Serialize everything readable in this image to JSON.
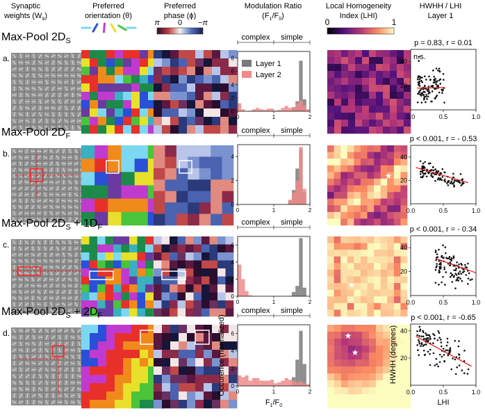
{
  "headers": {
    "weights": [
      "Synaptic",
      "weights (W",
      "s",
      ")"
    ],
    "orientation": [
      "Preferred",
      "orientation (θ)"
    ],
    "phase": [
      "Preferred",
      "phase (ϕ)"
    ],
    "modulation": [
      "Modulation Ratio",
      "(F",
      "1",
      "/F",
      "0",
      ")"
    ],
    "lhi": [
      "Local Homogeneity",
      "Index (LHI)"
    ],
    "hwhh": [
      "HWHH / LHI",
      "Layer 1"
    ]
  },
  "phase_colorbar": {
    "left": "π",
    "mid": "0",
    "right": "−π"
  },
  "lhi_colorbar": {
    "min": "0",
    "max": "1"
  },
  "rows": [
    {
      "letter": "a.",
      "title_main": "Max-Pool 2D",
      "title_sub": "S",
      "title_extra": "",
      "title_extra_sub": "",
      "stats": "p = 0.83, r = 0.01",
      "ns": "n.s."
    },
    {
      "letter": "b.",
      "title_main": "Max-Pool 2D",
      "title_sub": "F",
      "title_extra": "",
      "title_extra_sub": "",
      "stats": "p < 0.001, r = - 0.53",
      "ns": ""
    },
    {
      "letter": "c.",
      "title_main": "Max-Pool 2D",
      "title_sub": "S",
      "title_extra": " + 1D",
      "title_extra_sub": "F",
      "stats": "p < 0.001, r = - 0.34",
      "ns": ""
    },
    {
      "letter": "d.",
      "title_main": "Max-Pool 2D",
      "title_sub": "S",
      "title_extra": " + 2D",
      "title_extra_sub": "F",
      "stats": "p < 0.001, r = -0.65",
      "ns": ""
    }
  ],
  "hist_labels": {
    "complex": "complex",
    "simple": "simple",
    "legend_l1": "Layer 1",
    "legend_l2": "Layer 2",
    "xlabel_main": "F",
    "xlabel_sub1": "1",
    "xlabel_slash": "/F",
    "xlabel_sub0": "0",
    "ylabel": "Occurence (normalized)"
  },
  "scatter_labels": {
    "xlabel": "LHI",
    "ylabel": "HWHH (degrees)"
  },
  "colors": {
    "layer1": "#7a7a7a",
    "layer2": "#f08a8a",
    "fit": "#e02020",
    "highlight": "#ff2020"
  },
  "chart_data": [
    {
      "panel": "a",
      "type": "bar",
      "title": "Modulation Ratio histogram",
      "xlim": [
        0,
        2
      ],
      "ylim": [
        0,
        9
      ],
      "yticks": [
        0,
        2,
        4,
        6,
        8
      ],
      "xticks": [
        0,
        1,
        2
      ],
      "bins": 20,
      "series": [
        {
          "name": "Layer 1",
          "values": [
            0,
            0,
            0,
            0,
            0,
            0,
            0,
            0,
            0,
            0,
            0,
            0,
            0,
            0,
            0,
            0.6,
            1.5,
            7.6,
            1.8,
            0
          ]
        },
        {
          "name": "Layer 2",
          "values": [
            1.2,
            0.3,
            0,
            0.1,
            0.3,
            0.5,
            0.3,
            0.2,
            0.4,
            0.4,
            0.1,
            0.2,
            0.5,
            0.8,
            0.5,
            0.5,
            1.2,
            1.6,
            0.9,
            0.3
          ]
        }
      ]
    },
    {
      "panel": "b",
      "type": "bar",
      "title": "Modulation Ratio histogram",
      "xlim": [
        0,
        2
      ],
      "ylim": [
        0,
        5
      ],
      "yticks": [
        0,
        2,
        4
      ],
      "xticks": [
        0,
        1,
        2
      ],
      "bins": 20,
      "series": [
        {
          "name": "Layer 1",
          "values": [
            0,
            0,
            0,
            0,
            0,
            0,
            0,
            0,
            0,
            0,
            0,
            0,
            0,
            0,
            0.3,
            1.2,
            3.0,
            4.6,
            1.0,
            0
          ]
        },
        {
          "name": "Layer 2",
          "values": [
            0,
            0,
            0,
            0,
            0,
            0,
            0,
            0,
            0,
            0,
            0,
            0,
            0,
            0,
            0.4,
            1.0,
            2.0,
            4.8,
            1.3,
            0
          ]
        }
      ]
    },
    {
      "panel": "c",
      "type": "bar",
      "title": "Modulation Ratio histogram",
      "xlim": [
        0,
        2
      ],
      "ylim": [
        0,
        7
      ],
      "yticks": [
        0,
        2,
        4,
        6
      ],
      "xticks": [
        0,
        1,
        2
      ],
      "bins": 20,
      "series": [
        {
          "name": "Layer 1",
          "values": [
            0,
            0,
            0,
            0,
            0,
            0,
            0,
            0,
            0,
            0,
            0,
            0,
            0,
            0,
            0,
            0.5,
            1.2,
            6.8,
            1.0,
            0
          ]
        },
        {
          "name": "Layer 2",
          "values": [
            3.7,
            2.0,
            0.6,
            0.1,
            0,
            0,
            0,
            0,
            0,
            0,
            0,
            0,
            0,
            0,
            0,
            0,
            0,
            0,
            0,
            0
          ]
        }
      ]
    },
    {
      "panel": "d",
      "type": "bar",
      "title": "Modulation Ratio histogram",
      "xlim": [
        0,
        2
      ],
      "ylim": [
        0,
        7
      ],
      "yticks": [
        0,
        2,
        4,
        6
      ],
      "xticks": [
        0,
        1,
        2
      ],
      "bins": 20,
      "series": [
        {
          "name": "Layer 1",
          "values": [
            0,
            0,
            0,
            0,
            0,
            0,
            0,
            0,
            0,
            0,
            0,
            0,
            0,
            0,
            0,
            1.0,
            3.0,
            6.3,
            2.5,
            0
          ]
        },
        {
          "name": "Layer 2",
          "values": [
            1.2,
            1.0,
            1.2,
            0.6,
            0.9,
            0.9,
            0.6,
            0.6,
            0.6,
            0.7,
            0.3,
            0.4,
            0.6,
            0.9,
            0.7,
            0.6,
            0.4,
            0.5,
            0.3,
            0.2
          ]
        }
      ]
    },
    {
      "panel": "a",
      "type": "scatter",
      "title": "HWHH / LHI Layer 1",
      "xlim": [
        0,
        1
      ],
      "ylim": [
        0,
        50
      ],
      "xticks": [
        0.0,
        0.5,
        1.0
      ],
      "yticks": [
        20,
        40
      ],
      "fit": {
        "x": [
          0.1,
          0.52
        ],
        "y": [
          18,
          18.5
        ]
      },
      "points_seed": 11,
      "n_points": 110,
      "x_range": [
        0.1,
        0.52
      ],
      "y_mean": 19,
      "y_sd": 7,
      "slope": 0
    },
    {
      "panel": "b",
      "type": "scatter",
      "title": "HWHH / LHI Layer 1",
      "xlim": [
        0,
        1
      ],
      "ylim": [
        0,
        50
      ],
      "xticks": [
        0.0,
        0.5,
        1.0
      ],
      "yticks": [
        20,
        40
      ],
      "fit": {
        "x": [
          0.08,
          0.88
        ],
        "y": [
          31,
          18
        ]
      },
      "points_seed": 23,
      "n_points": 110,
      "x_range": [
        0.15,
        0.9
      ],
      "y_mean": 22,
      "y_sd": 3,
      "slope": -17
    },
    {
      "panel": "c",
      "type": "scatter",
      "title": "HWHH / LHI Layer 1",
      "xlim": [
        0,
        1
      ],
      "ylim": [
        0,
        50
      ],
      "xticks": [
        0.0,
        0.5,
        1.0
      ],
      "yticks": [
        20,
        40
      ],
      "fit": {
        "x": [
          0.38,
          1.0
        ],
        "y": [
          31,
          19
        ]
      },
      "points_seed": 37,
      "n_points": 110,
      "x_range": [
        0.38,
        1.0
      ],
      "y_mean": 23,
      "y_sd": 7,
      "slope": -19
    },
    {
      "panel": "d",
      "type": "scatter",
      "title": "HWHH / LHI Layer 1",
      "xlim": [
        0,
        1
      ],
      "ylim": [
        0,
        45
      ],
      "xticks": [
        0.0,
        0.5,
        1.0
      ],
      "yticks": [
        20,
        40
      ],
      "fit": {
        "x": [
          0.08,
          0.93
        ],
        "y": [
          36,
          14
        ]
      },
      "points_seed": 53,
      "n_points": 110,
      "x_range": [
        0.1,
        0.93
      ],
      "y_mean": 23,
      "y_sd": 6,
      "slope": -26
    }
  ]
}
